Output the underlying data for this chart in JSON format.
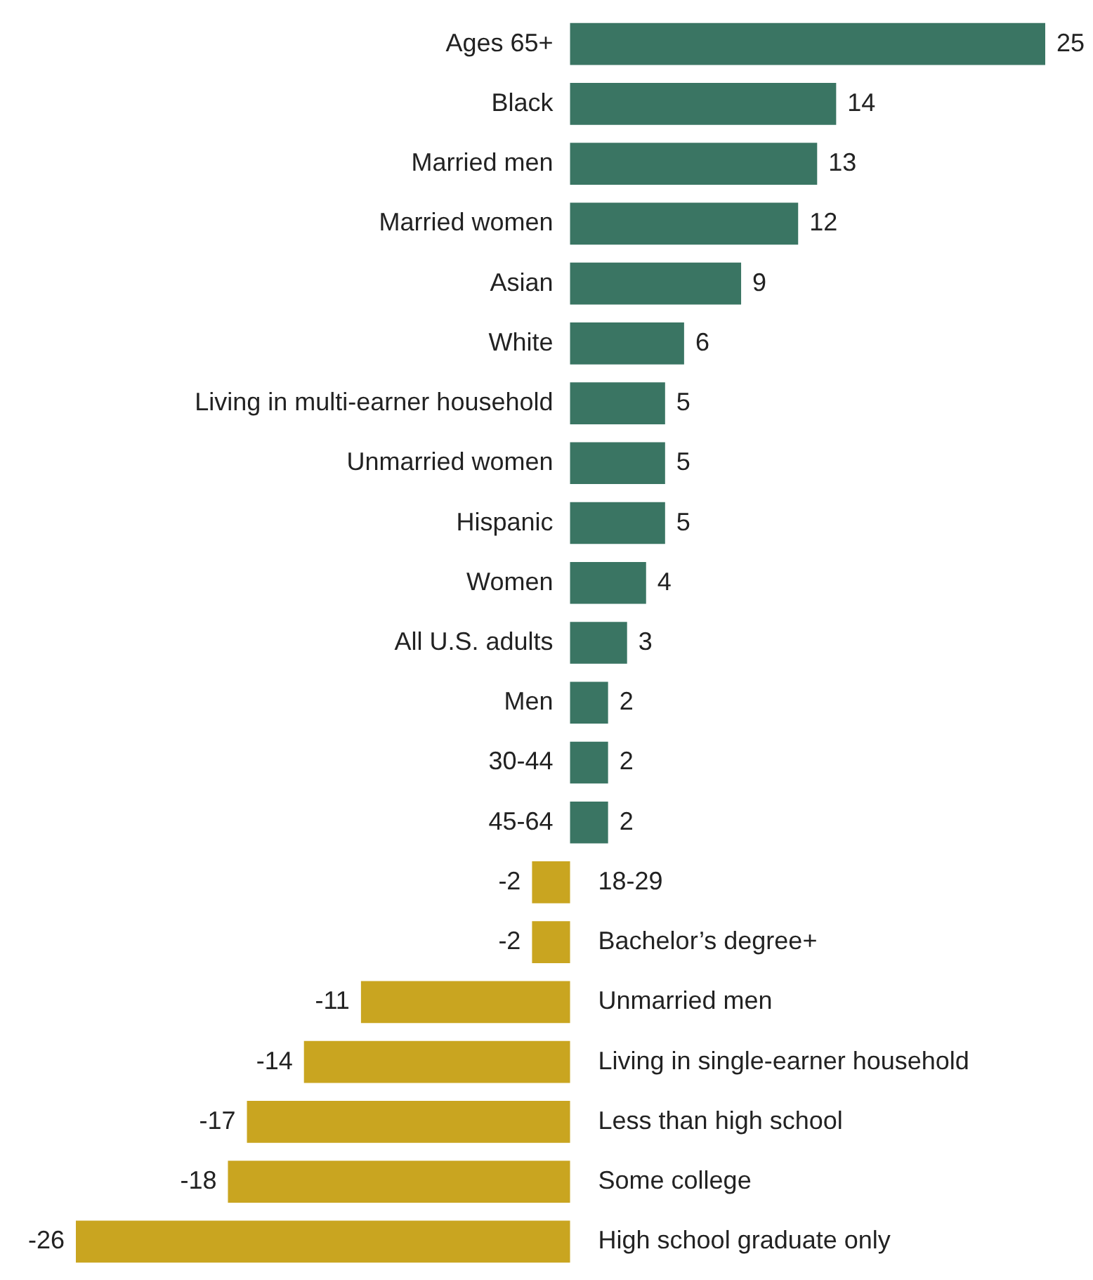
{
  "chart_data": {
    "type": "bar",
    "orientation": "horizontal",
    "data_labels": true,
    "categories": [
      "Ages 65+",
      "Black",
      "Married men",
      "Married women",
      "Asian",
      "White",
      "Living in multi-earner household",
      "Unmarried women",
      "Hispanic",
      "Women",
      "All U.S. adults",
      "Men",
      "30-44",
      "45-64",
      "18-29",
      "Bachelor’s degree+",
      "Unmarried men",
      "Living in single-earner household",
      "Less than high school",
      "Some college",
      "High school graduate only"
    ],
    "values": [
      25,
      14,
      13,
      12,
      9,
      6,
      5,
      5,
      5,
      4,
      3,
      2,
      2,
      2,
      -2,
      -2,
      -11,
      -14,
      -17,
      -18,
      -26
    ],
    "colors": [
      "#3a7563",
      "#3a7563",
      "#3a7563",
      "#3a7563",
      "#3a7563",
      "#3a7563",
      "#3a7563",
      "#3a7563",
      "#3a7563",
      "#3a7563",
      "#3a7563",
      "#3a7563",
      "#3a7563",
      "#3a7563",
      "#c9a520",
      "#c9a520",
      "#c9a520",
      "#c9a520",
      "#c9a520",
      "#c9a520",
      "#c9a520"
    ]
  }
}
